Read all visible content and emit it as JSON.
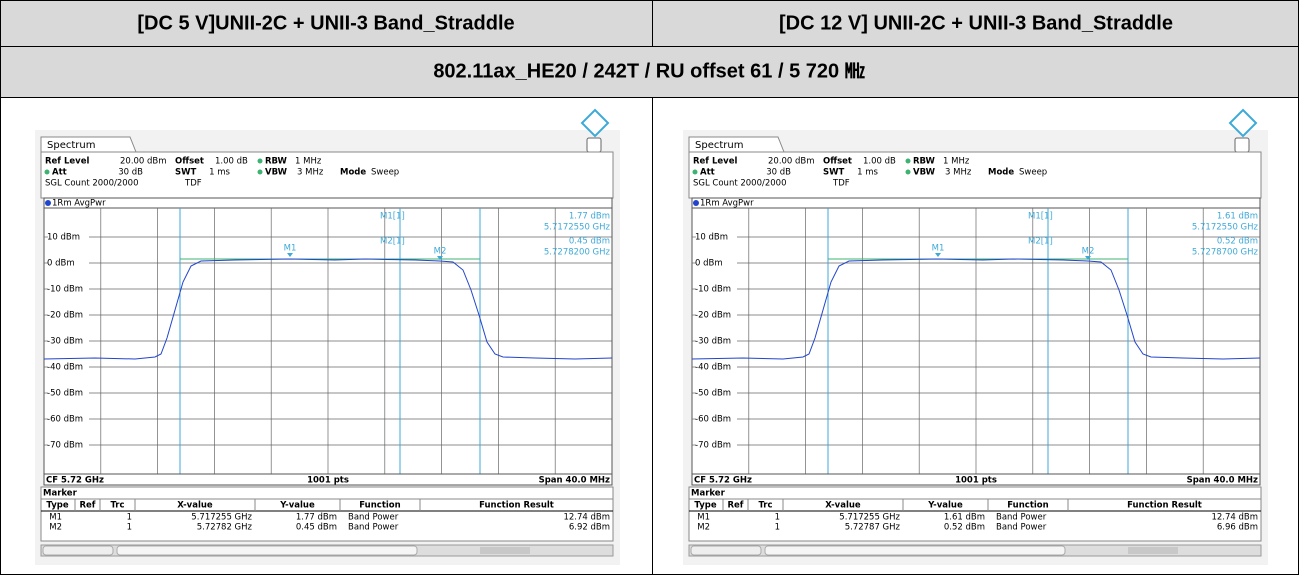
{
  "table": {
    "header": [
      "[DC 5 V]UNII-2C + UNII-3 Band_Straddle",
      "[DC 12 V] UNII-2C + UNII-3 Band_Straddle"
    ],
    "subheader": "802.11ax_HE20 / 242T / RU offset 61 / 5 720 ㎒"
  },
  "screens": [
    {
      "tab": "Spectrum",
      "settings": [
        [
          "Ref Level",
          "20.00 dBm"
        ],
        [
          "Offset",
          "1.00 dB"
        ],
        [
          "RBW",
          "1 MHz"
        ],
        [
          "Att",
          "30 dB"
        ],
        [
          "SWT",
          "1 ms"
        ],
        [
          "VBW",
          "3 MHz"
        ],
        [
          "Mode",
          "Sweep"
        ]
      ],
      "count": "SGL Count 2000/2000",
      "tdf": "TDF",
      "trace": "1Rm AvgPwr",
      "marker_info": [
        {
          "label": "M1[1]",
          "level": "1.77 dBm",
          "freq": "5.7172550 GHz"
        },
        {
          "label": "M2[1]",
          "level": "0.45 dBm",
          "freq": "5.7278200 GHz"
        }
      ],
      "marker_labels": [
        "M1",
        "M2"
      ],
      "y_labels": [
        "10 dBm",
        "0 dBm",
        "-10 dBm",
        "-20 dBm",
        "-30 dBm",
        "-40 dBm",
        "-50 dBm",
        "-60 dBm",
        "-70 dBm"
      ],
      "footer": {
        "cf": "CF 5.72 GHz",
        "points": "1001 pts",
        "span": "Span 40.0 MHz"
      },
      "marker_table": {
        "title": "Marker",
        "columns": [
          "Type",
          "Ref",
          "Trc",
          "X-value",
          "Y-value",
          "Function",
          "Function Result"
        ],
        "rows": [
          {
            "type": "M1",
            "trc": "1",
            "x": "5.717255 GHz",
            "y": "1.77 dBm",
            "func": "Band Power",
            "result": "12.74 dBm"
          },
          {
            "type": "M2",
            "trc": "1",
            "x": "5.72782 GHz",
            "y": "0.45 dBm",
            "func": "Band Power",
            "result": "6.92 dBm"
          }
        ]
      }
    },
    {
      "tab": "Spectrum",
      "settings": [
        [
          "Ref Level",
          "20.00 dBm"
        ],
        [
          "Offset",
          "1.00 dB"
        ],
        [
          "RBW",
          "1 MHz"
        ],
        [
          "Att",
          "30 dB"
        ],
        [
          "SWT",
          "1 ms"
        ],
        [
          "VBW",
          "3 MHz"
        ],
        [
          "Mode",
          "Sweep"
        ]
      ],
      "count": "SGL Count 2000/2000",
      "tdf": "TDF",
      "trace": "1Rm AvgPwr",
      "marker_info": [
        {
          "label": "M1[1]",
          "level": "1.61 dBm",
          "freq": "5.7172550 GHz"
        },
        {
          "label": "M2[1]",
          "level": "0.52 dBm",
          "freq": "5.7278700 GHz"
        }
      ],
      "marker_labels": [
        "M1",
        "M2"
      ],
      "y_labels": [
        "10 dBm",
        "0 dBm",
        "-10 dBm",
        "-20 dBm",
        "-30 dBm",
        "-40 dBm",
        "-50 dBm",
        "-60 dBm",
        "-70 dBm"
      ],
      "footer": {
        "cf": "CF 5.72 GHz",
        "points": "1001 pts",
        "span": "Span 40.0 MHz"
      },
      "marker_table": {
        "title": "Marker",
        "columns": [
          "Type",
          "Ref",
          "Trc",
          "X-value",
          "Y-value",
          "Function",
          "Function Result"
        ],
        "rows": [
          {
            "type": "M1",
            "trc": "1",
            "x": "5.717255 GHz",
            "y": "1.61 dBm",
            "func": "Band Power",
            "result": "12.74 dBm"
          },
          {
            "type": "M2",
            "trc": "1",
            "x": "5.72787 GHz",
            "y": "0.52 dBm",
            "func": "Band Power",
            "result": "6.96 dBm"
          }
        ]
      }
    }
  ]
}
